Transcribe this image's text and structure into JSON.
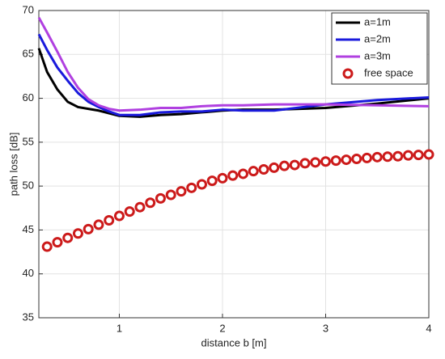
{
  "chart_data": {
    "type": "line",
    "xlabel": "distance b [m]",
    "ylabel": "path loss [dB]",
    "xlim": [
      0.22,
      4
    ],
    "ylim": [
      35,
      70
    ],
    "xticks": [
      1,
      2,
      3,
      4
    ],
    "yticks": [
      35,
      40,
      45,
      50,
      55,
      60,
      65,
      70
    ],
    "grid": true,
    "legend": "upper right",
    "series": [
      {
        "name": "a=1m",
        "color": "#000000",
        "style": "line",
        "x": [
          0.22,
          0.3,
          0.4,
          0.5,
          0.6,
          0.7,
          0.8,
          0.9,
          1.0,
          1.2,
          1.4,
          1.6,
          1.8,
          2.0,
          2.2,
          2.5,
          3.0,
          3.5,
          4.0
        ],
        "values": [
          65.7,
          63,
          61,
          59.6,
          59,
          58.8,
          58.6,
          58.3,
          58.0,
          57.9,
          58.1,
          58.2,
          58.4,
          58.6,
          58.7,
          58.7,
          58.9,
          59.4,
          60.0
        ]
      },
      {
        "name": "a=2m",
        "color": "#1a1adc",
        "style": "line",
        "x": [
          0.22,
          0.3,
          0.4,
          0.5,
          0.6,
          0.7,
          0.8,
          0.9,
          1.0,
          1.2,
          1.4,
          1.6,
          1.8,
          2.0,
          2.2,
          2.5,
          3.0,
          3.5,
          4.0
        ],
        "values": [
          67.3,
          65.5,
          63.5,
          62,
          60.6,
          59.6,
          59.0,
          58.5,
          58.1,
          58.1,
          58.4,
          58.5,
          58.5,
          58.7,
          58.6,
          58.6,
          59.3,
          59.8,
          60.1
        ]
      },
      {
        "name": "a=3m",
        "color": "#b040e0",
        "style": "line",
        "x": [
          0.22,
          0.3,
          0.4,
          0.5,
          0.6,
          0.7,
          0.8,
          0.9,
          1.0,
          1.2,
          1.4,
          1.6,
          1.8,
          2.0,
          2.2,
          2.5,
          3.0,
          3.5,
          4.0
        ],
        "values": [
          69.2,
          67.5,
          65.3,
          63,
          61.2,
          59.9,
          59.2,
          58.8,
          58.6,
          58.7,
          58.9,
          58.9,
          59.1,
          59.2,
          59.2,
          59.3,
          59.3,
          59.2,
          59.1
        ]
      },
      {
        "name": "free space",
        "color": "#cc1a1a",
        "style": "marker",
        "x": [
          0.3,
          0.4,
          0.5,
          0.6,
          0.7,
          0.8,
          0.9,
          1.0,
          1.1,
          1.2,
          1.3,
          1.4,
          1.5,
          1.6,
          1.7,
          1.8,
          1.9,
          2.0,
          2.1,
          2.2,
          2.3,
          2.4,
          2.5,
          2.6,
          2.7,
          2.8,
          2.9,
          3.0,
          3.1,
          3.2,
          3.3,
          3.4,
          3.5,
          3.6,
          3.7,
          3.8,
          3.9,
          4.0
        ],
        "values": [
          43.1,
          43.6,
          44.1,
          44.6,
          45.1,
          45.6,
          46.1,
          46.6,
          47.1,
          47.6,
          48.1,
          48.6,
          49.0,
          49.4,
          49.8,
          50.2,
          50.6,
          50.9,
          51.2,
          51.4,
          51.7,
          51.9,
          52.1,
          52.3,
          52.4,
          52.6,
          52.7,
          52.8,
          52.9,
          53.0,
          53.1,
          53.2,
          53.3,
          53.35,
          53.4,
          53.5,
          53.55,
          53.6
        ]
      }
    ]
  }
}
